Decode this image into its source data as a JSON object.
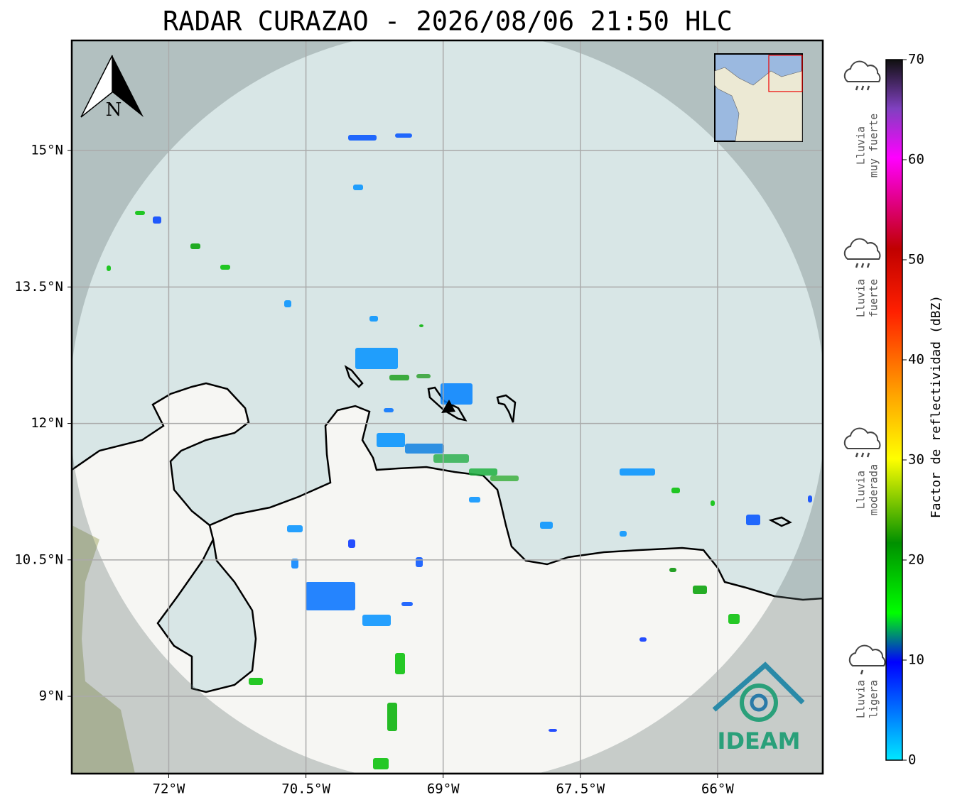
{
  "title": "RADAR CURAZAO - 2026/08/06 21:50 HLC",
  "map": {
    "lon_range": [
      -73.06,
      -64.85
    ],
    "lat_range": [
      8.15,
      16.21
    ],
    "lon_ticks": [
      {
        "value": -72,
        "label": "72°W"
      },
      {
        "value": -70.5,
        "label": "70.5°W"
      },
      {
        "value": -69,
        "label": "69°W"
      },
      {
        "value": -67.5,
        "label": "67.5°W"
      },
      {
        "value": -66,
        "label": "66°W"
      }
    ],
    "lat_ticks": [
      {
        "value": 15,
        "label": "15°N"
      },
      {
        "value": 13.5,
        "label": "13.5°N"
      },
      {
        "value": 12,
        "label": "12°N"
      },
      {
        "value": 10.5,
        "label": "10.5°N"
      },
      {
        "value": 9,
        "label": "9°N"
      }
    ],
    "north_label": "N",
    "logo_text": "IDEAM"
  },
  "colorbar": {
    "label": "Factor de reflectividad (dBZ)",
    "range": [
      0,
      70
    ],
    "ticks": [
      0,
      10,
      20,
      30,
      40,
      50,
      60,
      70
    ]
  },
  "rain_legend": [
    {
      "lines": [
        "Lluvia",
        "muy fuerte"
      ]
    },
    {
      "lines": [
        "Lluvia",
        "fuerte"
      ]
    },
    {
      "lines": [
        "Lluvia",
        "moderada"
      ]
    },
    {
      "lines": [
        "Lluvia",
        "ligera"
      ]
    }
  ]
}
